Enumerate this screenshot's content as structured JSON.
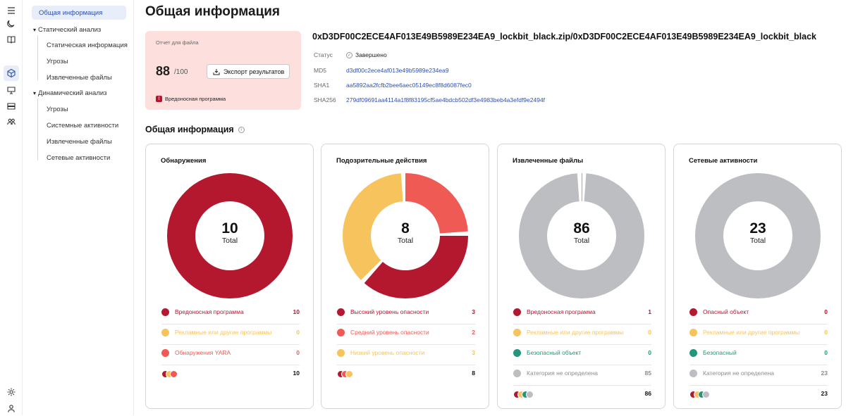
{
  "colors": {
    "malicious": "#b3182f",
    "warning": "#f7c35c",
    "red": "#f05a55",
    "safe": "#23967c",
    "gray": "#bcbec2"
  },
  "rail_icons": [
    "menu-icon",
    "moon-icon",
    "book-icon",
    "cube-icon",
    "monitor-icon",
    "storage-icon",
    "users-icon",
    "gear-icon",
    "user-icon"
  ],
  "nav": {
    "overview": "Общая информация",
    "static_group": "Статический анализ",
    "static_items": [
      "Статическая информация",
      "Угрозы",
      "Извлеченные файлы"
    ],
    "dynamic_group": "Динамический анализ",
    "dynamic_items": [
      "Угрозы",
      "Системные активности",
      "Извлеченные файлы",
      "Сетевые активности"
    ]
  },
  "page_title": "Общая информация",
  "report": {
    "label": "Отчет для файла",
    "score": "88",
    "score_max": "/100",
    "export_label": "Экспорт результатов",
    "verdict_badge": "!",
    "verdict": "Вредоносная программа"
  },
  "file": {
    "name": "0xD3DF00C2ECE4AF013E49B5989E234EA9_lockbit_black.zip/0xD3DF00C2ECE4AF013E49B5989E234EA9_lockbit_black",
    "status_label": "Статус",
    "status_value": "Завершено",
    "status_mark": "✓",
    "md5_label": "MD5",
    "md5": "d3df00c2ece4af013e49b5989e234ea9",
    "sha1_label": "SHA1",
    "sha1": "aa5892aa2fcfb2bee6aec05149ec8f8d6087fec0",
    "sha256_label": "SHA256",
    "sha256": "279df09691aa4114a1f8f83195cf5ae4bdcb502df3e4983beb4a3efdf9e2494f"
  },
  "section_title": "Общая информация",
  "section_info": "i",
  "cards": [
    {
      "title": "Обнаружения",
      "total": "10",
      "total_label": "Total",
      "rows": [
        {
          "label": "Вредоносная программа",
          "value": "10",
          "color": "#b3182f"
        },
        {
          "label": "Рекламные или другие программы",
          "value": "0",
          "color": "#f7c35c"
        },
        {
          "label": "Обнаружения YARA",
          "value": "0",
          "color": "#f05a55"
        }
      ],
      "sum": "10"
    },
    {
      "title": "Подозрительные действия",
      "total": "8",
      "total_label": "Total",
      "rows": [
        {
          "label": "Высокий уровень опасности",
          "value": "3",
          "color": "#b3182f"
        },
        {
          "label": "Средний уровень опасности",
          "value": "2",
          "color": "#f05a55"
        },
        {
          "label": "Низкий уровень опасности",
          "value": "3",
          "color": "#f7c35c"
        }
      ],
      "sum": "8"
    },
    {
      "title": "Извлеченные файлы",
      "total": "86",
      "total_label": "Total",
      "rows": [
        {
          "label": "Вредоносная программа",
          "value": "1",
          "color": "#b3182f"
        },
        {
          "label": "Рекламные или другие программы",
          "value": "0",
          "color": "#f7c35c"
        },
        {
          "label": "Безопасный объект",
          "value": "0",
          "color": "#23967c"
        },
        {
          "label": "Категория не определена",
          "value": "85",
          "color": "#bcbec2"
        }
      ],
      "sum": "86"
    },
    {
      "title": "Сетевые активности",
      "total": "23",
      "total_label": "Total",
      "rows": [
        {
          "label": "Опасный объект",
          "value": "0",
          "color": "#b3182f"
        },
        {
          "label": "Рекламные или другие программы",
          "value": "0",
          "color": "#f7c35c"
        },
        {
          "label": "Безопасный",
          "value": "0",
          "color": "#23967c"
        },
        {
          "label": "Категория не определена",
          "value": "23",
          "color": "#bcbec2"
        }
      ],
      "sum": "23"
    }
  ],
  "chart_data": [
    {
      "type": "pie",
      "title": "Обнаружения",
      "categories": [
        "Вредоносная программа",
        "Рекламные или другие программы",
        "Обнаружения YARA"
      ],
      "values": [
        10,
        0,
        0
      ]
    },
    {
      "type": "pie",
      "title": "Подозрительные действия",
      "categories": [
        "Средний уровень опасности",
        "Высокий уровень опасности",
        "Низкий уровень опасности"
      ],
      "values": [
        2,
        3,
        3
      ]
    },
    {
      "type": "pie",
      "title": "Извлеченные файлы",
      "categories": [
        "Вредоносная программа",
        "Категория не определена"
      ],
      "values": [
        1,
        85
      ]
    },
    {
      "type": "pie",
      "title": "Сетевые активности",
      "categories": [
        "Категория не определена"
      ],
      "values": [
        23
      ]
    }
  ]
}
